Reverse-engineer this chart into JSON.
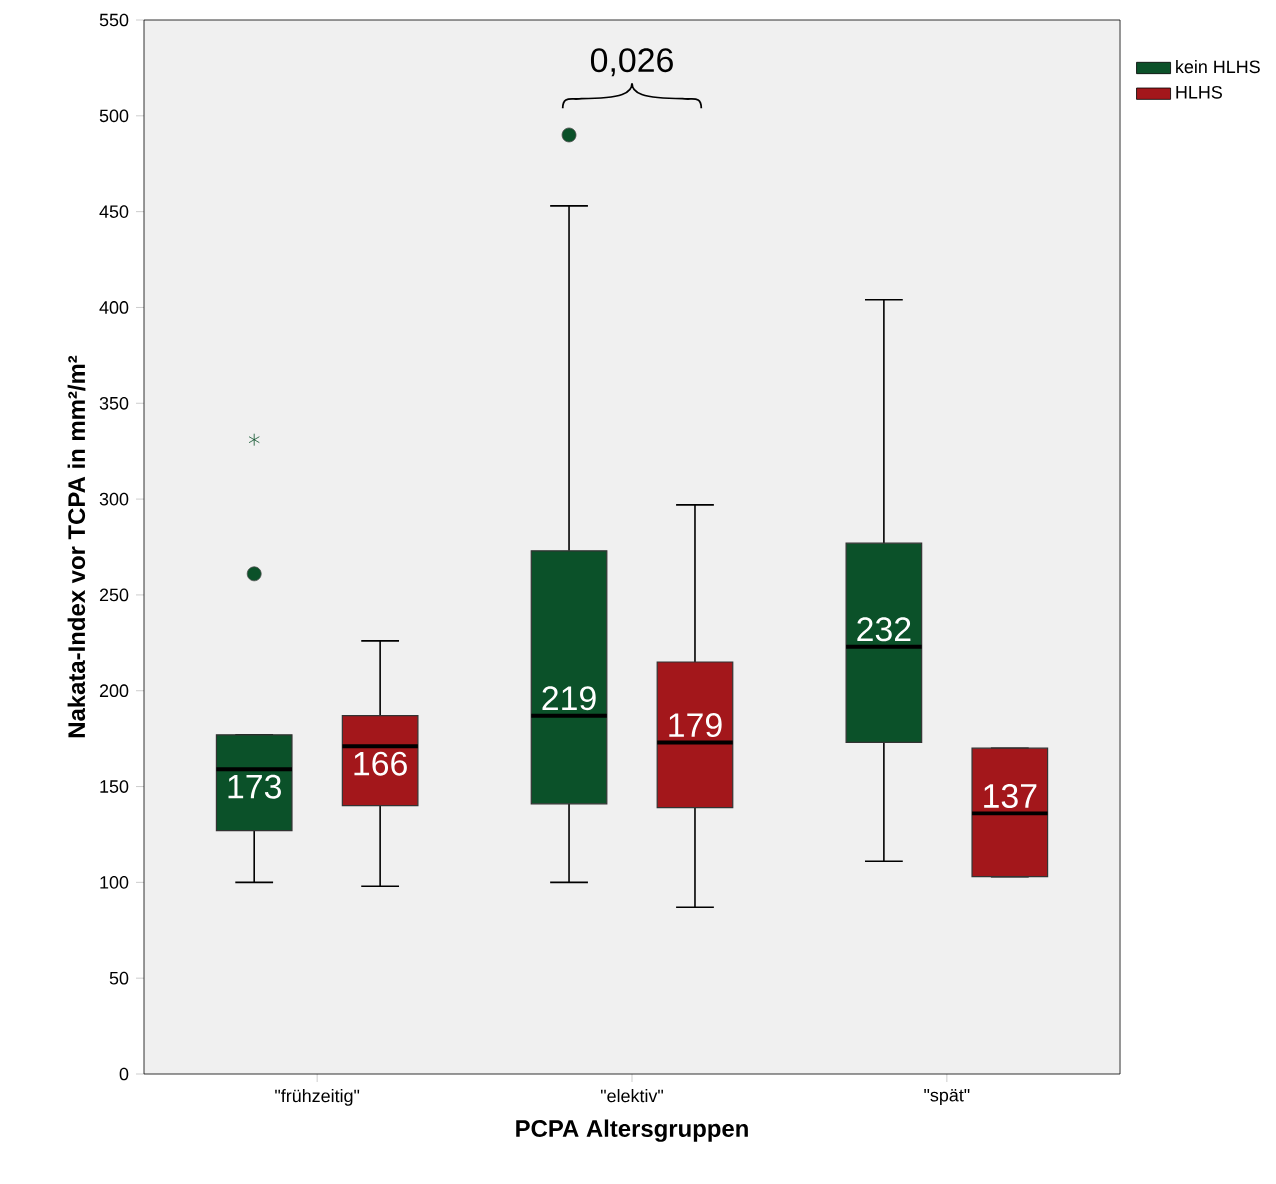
{
  "chart_data": {
    "type": "box",
    "xlabel": "PCPA Altersgruppen",
    "ylabel": "Nakata-Index vor TCPA in mm²/m²",
    "categories": [
      "\"frühzeitig\"",
      "\"elektiv\"",
      "\"spät\""
    ],
    "ylim": [
      0,
      550
    ],
    "yticks": [
      0,
      50,
      100,
      150,
      200,
      250,
      300,
      350,
      400,
      450,
      500,
      550
    ],
    "legend": "top right",
    "grid": false,
    "annotations": [
      "0,026"
    ],
    "series": [
      {
        "name": "kein HLHS",
        "color": "#0b5129",
        "value_labels": [
          "173",
          "219",
          "232"
        ],
        "boxes": [
          {
            "low": 100,
            "q1": 127,
            "median": 159,
            "q3": 177,
            "high": 177,
            "outliers": [
              261,
              331
            ]
          },
          {
            "low": 100,
            "q1": 141,
            "median": 187,
            "q3": 273,
            "high": 453,
            "outliers": [
              490
            ]
          },
          {
            "low": 111,
            "q1": 173,
            "median": 223,
            "q3": 277,
            "high": 404
          }
        ]
      },
      {
        "name": "HLHS",
        "color": "#a3171b",
        "value_labels": [
          "166",
          "179",
          "137"
        ],
        "boxes": [
          {
            "low": 98,
            "q1": 140,
            "median": 171,
            "q3": 187,
            "high": 226
          },
          {
            "low": 87,
            "q1": 139,
            "median": 173,
            "q3": 215,
            "high": 297
          },
          {
            "low": 103,
            "q1": 103,
            "median": 136,
            "q3": 170,
            "high": 170
          }
        ]
      }
    ]
  }
}
